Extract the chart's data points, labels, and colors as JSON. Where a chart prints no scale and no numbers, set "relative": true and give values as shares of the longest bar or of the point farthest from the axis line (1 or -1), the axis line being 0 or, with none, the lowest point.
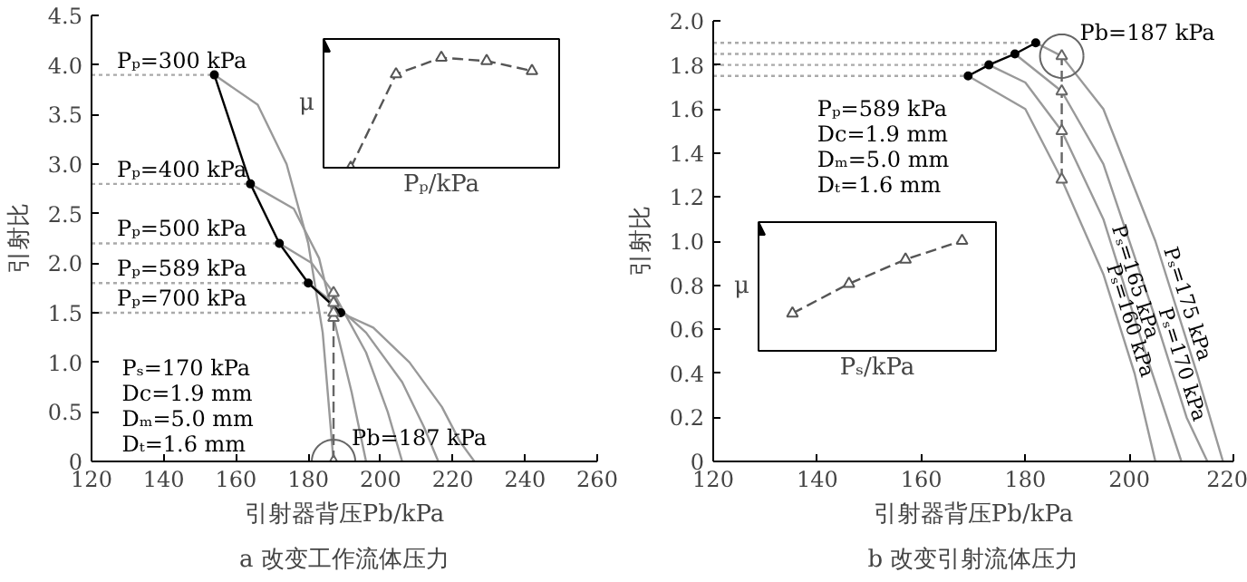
{
  "chart_data": [
    {
      "type": "line",
      "title": "a 改变工作流体压力",
      "xlabel": "引射器背压Pb/kPa",
      "ylabel": "引射比",
      "xlim": [
        120,
        260
      ],
      "xticks": [
        120,
        140,
        160,
        180,
        200,
        220,
        240,
        260
      ],
      "ylim": [
        0,
        4.5
      ],
      "yticks": [
        0,
        0.5,
        {
          "value": 1,
          "label": "1.0"
        },
        1.5,
        {
          "value": 2,
          "label": "2.0"
        },
        2.5,
        {
          "value": 3,
          "label": "3.0"
        },
        3.5,
        {
          "value": 4,
          "label": "4.0"
        },
        4.5
      ],
      "grid": false,
      "legend": false,
      "series": [
        {
          "color": "#aaaaaa",
          "line_style": "dotted",
          "marker": "none",
          "name": "Pₚ=300 kPa",
          "x": [
            120,
            154
          ],
          "values": [
            3.9,
            3.9
          ]
        },
        {
          "color": "#aaaaaa",
          "line_style": "dotted",
          "marker": "none",
          "name": "Pₚ=400 kPa",
          "x": [
            120,
            164
          ],
          "values": [
            2.8,
            2.8
          ]
        },
        {
          "color": "#aaaaaa",
          "line_style": "dotted",
          "marker": "none",
          "name": "Pₚ=500 kPa",
          "x": [
            120,
            172
          ],
          "values": [
            2.2,
            2.2
          ]
        },
        {
          "color": "#aaaaaa",
          "line_style": "dotted",
          "marker": "none",
          "name": "Pₚ=589 kPa",
          "x": [
            120,
            180
          ],
          "values": [
            1.8,
            1.8
          ]
        },
        {
          "color": "#aaaaaa",
          "line_style": "dotted",
          "marker": "none",
          "name": "Pₚ=700 kPa",
          "x": [
            120,
            189
          ],
          "values": [
            1.5,
            1.5
          ]
        },
        {
          "color": "#999999",
          "line_style": "solid",
          "marker": "none",
          "x": [
            154,
            166,
            174,
            180,
            184,
            187
          ],
          "values": [
            3.9,
            3.6,
            3.0,
            2.2,
            1.3,
            0
          ]
        },
        {
          "color": "#999999",
          "line_style": "solid",
          "marker": "none",
          "x": [
            164,
            176,
            183,
            187,
            192,
            196
          ],
          "values": [
            2.8,
            2.55,
            2.05,
            1.45,
            0.7,
            0
          ]
        },
        {
          "color": "#999999",
          "line_style": "solid",
          "marker": "none",
          "x": [
            172,
            181,
            187,
            196,
            202,
            206
          ],
          "values": [
            2.2,
            2.0,
            1.7,
            1.1,
            0.5,
            0
          ]
        },
        {
          "color": "#999999",
          "line_style": "solid",
          "marker": "none",
          "x": [
            180,
            187,
            196,
            206,
            212,
            216
          ],
          "values": [
            1.8,
            1.6,
            1.3,
            0.8,
            0.35,
            0
          ]
        },
        {
          "color": "#999999",
          "line_style": "solid",
          "marker": "none",
          "x": [
            189,
            198,
            208,
            217,
            222,
            226
          ],
          "values": [
            1.5,
            1.35,
            1.0,
            0.55,
            0.2,
            0
          ]
        },
        {
          "color": "#000000",
          "line_style": "solid",
          "marker": "circle",
          "x": [
            154,
            164,
            172,
            180,
            189
          ],
          "values": [
            3.9,
            2.8,
            2.2,
            1.8,
            1.5
          ]
        },
        {
          "color": "#666666",
          "line_style": "dashed",
          "marker": "triangle",
          "x": [
            187,
            187,
            187,
            187,
            187
          ],
          "values": [
            0,
            1.45,
            1.5,
            1.6,
            1.7
          ]
        }
      ],
      "annotations": [
        "Pₛ=170 kPa",
        "Dc=1.9 mm",
        "Dₘ=5.0 mm",
        "Dₜ=1.6 mm",
        {
          "text": "Pb=187 kPa",
          "x": 187,
          "y": 0
        }
      ]
    },
    {
      "type": "line",
      "relative": true,
      "categories": [
        null,
        null,
        null,
        null,
        null
      ],
      "xlabel": "Pₚ/kPa",
      "ylabel": "μ",
      "tick_labels": false,
      "grid": false,
      "legend": false,
      "series": [
        {
          "color": "#555555",
          "line_style": "dashed",
          "marker": "triangle",
          "values": [
            0,
            0.85,
            1,
            0.97,
            0.88
          ]
        }
      ]
    },
    {
      "type": "line",
      "title": "b 改变引射流体压力",
      "xlabel": "引射器背压Pb/kPa",
      "ylabel": "引射比",
      "xlim": [
        120,
        220
      ],
      "xticks": [
        120,
        140,
        160,
        180,
        200,
        220
      ],
      "ylim": [
        0,
        2.0
      ],
      "yticks": [
        0,
        0.2,
        0.4,
        0.6,
        0.8,
        {
          "value": 1,
          "label": "1.0"
        },
        1.2,
        1.4,
        1.6,
        1.8,
        {
          "value": 2,
          "label": "2.0"
        }
      ],
      "grid": false,
      "legend": false,
      "series": [
        {
          "color": "#aaaaaa",
          "line_style": "dotted",
          "marker": "none",
          "x": [
            120,
            169
          ],
          "values": [
            1.75,
            1.75
          ]
        },
        {
          "color": "#aaaaaa",
          "line_style": "dotted",
          "marker": "none",
          "x": [
            120,
            173
          ],
          "values": [
            1.8,
            1.8
          ]
        },
        {
          "color": "#aaaaaa",
          "line_style": "dotted",
          "marker": "none",
          "x": [
            120,
            178
          ],
          "values": [
            1.85,
            1.85
          ]
        },
        {
          "color": "#aaaaaa",
          "line_style": "dotted",
          "marker": "none",
          "x": [
            120,
            182
          ],
          "values": [
            1.9,
            1.9
          ]
        },
        {
          "color": "#999999",
          "line_style": "solid",
          "marker": "none",
          "name": "Pₛ=160 kPa",
          "x": [
            169,
            180,
            187,
            195,
            201,
            205
          ],
          "values": [
            1.75,
            1.6,
            1.28,
            0.85,
            0.4,
            0
          ]
        },
        {
          "color": "#999999",
          "line_style": "solid",
          "marker": "none",
          "name": "Pₛ=165 kPa",
          "x": [
            173,
            180,
            187,
            195,
            203,
            210
          ],
          "values": [
            1.8,
            1.72,
            1.5,
            1.1,
            0.5,
            0
          ]
        },
        {
          "color": "#999999",
          "line_style": "solid",
          "marker": "none",
          "name": "Pₛ=170 kPa",
          "x": [
            178,
            187,
            195,
            205,
            211,
            215
          ],
          "values": [
            1.85,
            1.68,
            1.35,
            0.65,
            0.2,
            0
          ]
        },
        {
          "color": "#999999",
          "line_style": "solid",
          "marker": "none",
          "name": "Pₛ=175 kPa",
          "x": [
            182,
            187,
            195,
            205,
            213,
            218
          ],
          "values": [
            1.9,
            1.84,
            1.6,
            1.0,
            0.4,
            0
          ]
        },
        {
          "color": "#000000",
          "line_style": "solid",
          "marker": "circle",
          "x": [
            169,
            173,
            178,
            182
          ],
          "values": [
            1.75,
            1.8,
            1.85,
            1.9
          ]
        },
        {
          "color": "#666666",
          "line_style": "dashed",
          "marker": "triangle",
          "x": [
            187,
            187,
            187,
            187
          ],
          "values": [
            1.28,
            1.5,
            1.68,
            1.84
          ]
        }
      ],
      "annotations": [
        "Pₚ=589 kPa",
        "Dc=1.9 mm",
        "Dₘ=5.0 mm",
        "Dₜ=1.6 mm",
        {
          "text": "Pb=187 kPa",
          "x": 187,
          "y": 1.84
        }
      ]
    },
    {
      "type": "line",
      "relative": true,
      "categories": [
        null,
        null,
        null,
        null
      ],
      "xlabel": "Pₛ/kPa",
      "ylabel": "μ",
      "tick_labels": false,
      "grid": false,
      "legend": false,
      "series": [
        {
          "color": "#555555",
          "line_style": "dashed",
          "marker": "triangle",
          "values": [
            0.34,
            0.61,
            0.83,
            1
          ]
        }
      ]
    }
  ]
}
